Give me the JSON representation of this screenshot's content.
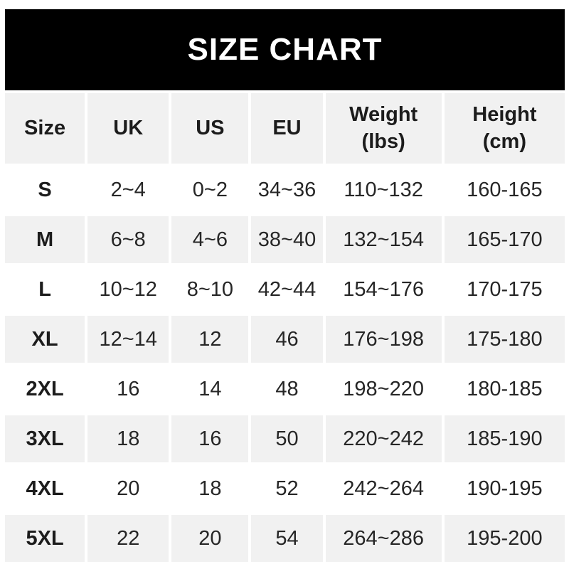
{
  "title": "SIZE CHART",
  "colors": {
    "banner_bg": "#000000",
    "banner_text": "#ffffff",
    "alt_row_bg": "#f1f1f1",
    "row_bg": "#ffffff",
    "text": "#262626"
  },
  "table": {
    "columns": [
      "Size",
      "UK",
      "US",
      "EU",
      "Weight\n(lbs)",
      "Height\n(cm)"
    ],
    "rows": [
      [
        "S",
        "2~4",
        "0~2",
        "34~36",
        "110~132",
        "160-165"
      ],
      [
        "M",
        "6~8",
        "4~6",
        "38~40",
        "132~154",
        "165-170"
      ],
      [
        "L",
        "10~12",
        "8~10",
        "42~44",
        "154~176",
        "170-175"
      ],
      [
        "XL",
        "12~14",
        "12",
        "46",
        "176~198",
        "175-180"
      ],
      [
        "2XL",
        "16",
        "14",
        "48",
        "198~220",
        "180-185"
      ],
      [
        "3XL",
        "18",
        "16",
        "50",
        "220~242",
        "185-190"
      ],
      [
        "4XL",
        "20",
        "18",
        "52",
        "242~264",
        "190-195"
      ],
      [
        "5XL",
        "22",
        "20",
        "54",
        "264~286",
        "195-200"
      ]
    ]
  }
}
